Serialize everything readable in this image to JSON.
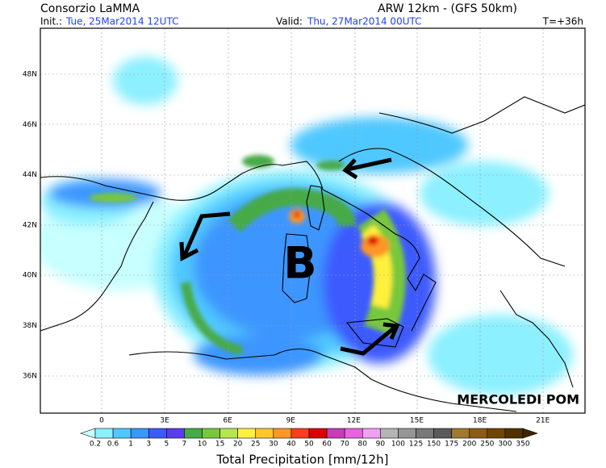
{
  "header": {
    "source": "Consorzio LaMMA",
    "model": "ARW 12km  - (GFS 50km)",
    "init_label": "Init.:",
    "init_value": "Tue, 25Mar2014 12UTC",
    "valid_label": "Valid:",
    "valid_value": "Thu, 27Mar2014 00UTC",
    "lead": "T=+36h"
  },
  "map": {
    "lat_labels": [
      "48N",
      "46N",
      "44N",
      "42N",
      "40N",
      "38N",
      "36N"
    ],
    "lon_labels": [
      "0",
      "3E",
      "6E",
      "9E",
      "12E",
      "15E",
      "18E",
      "21E"
    ],
    "annotations": {
      "low": "B",
      "day": "MERCOLEDI POM"
    }
  },
  "legend": {
    "title": "Total Precipitation [mm/12h]",
    "labels": [
      "0.2",
      "0.6",
      "1",
      "3",
      "5",
      "7",
      "10",
      "15",
      "20",
      "25",
      "30",
      "40",
      "50",
      "60",
      "70",
      "80",
      "90",
      "100",
      "125",
      "150",
      "175",
      "200",
      "250",
      "300",
      "350"
    ],
    "colors": [
      "#c8ffff",
      "#8cf0ff",
      "#50c8ff",
      "#3c96ff",
      "#3c5aff",
      "#5a3cf0",
      "#46aa46",
      "#78c83c",
      "#b4e650",
      "#fff03c",
      "#ffc828",
      "#ff9628",
      "#ff3c1e",
      "#dc0000",
      "#c83cb4",
      "#e664dc",
      "#f0a0f0",
      "#b4b4b4",
      "#969696",
      "#787878",
      "#5a5a5a",
      "#a07830",
      "#8c5a14",
      "#6e4600",
      "#503200",
      "#3c2400"
    ]
  }
}
